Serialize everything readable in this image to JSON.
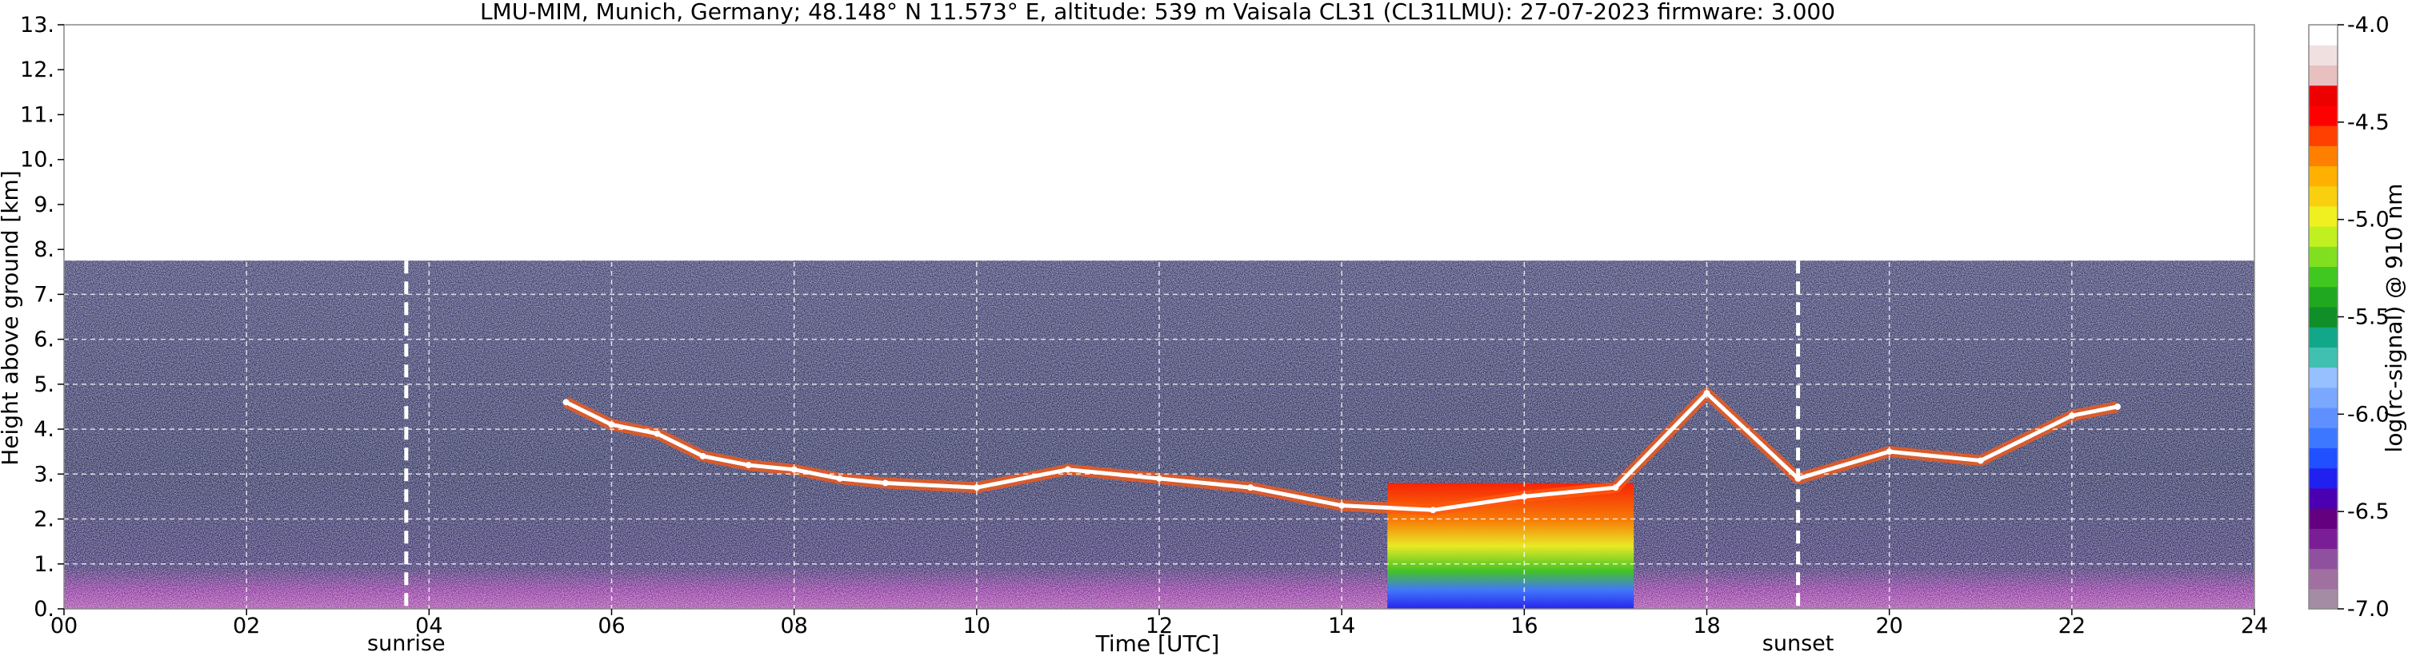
{
  "chart_data": {
    "type": "heatmap",
    "title": "LMU-MIM, Munich, Germany; 48.148° N 11.573° E, altitude: 539 m    Vaisala CL31 (CL31LMU): 27-07-2023    firmware: 3.000",
    "xlabel": "Time [UTC]",
    "ylabel": "Height above ground [km]",
    "xlim": [
      0,
      24
    ],
    "ylim": [
      0,
      13
    ],
    "x_ticks": [
      "00",
      "02",
      "04",
      "06",
      "08",
      "10",
      "12",
      "14",
      "16",
      "18",
      "20",
      "22",
      "24"
    ],
    "y_ticks": [
      "0.",
      "1.",
      "2.",
      "3.",
      "4.",
      "5.",
      "6.",
      "7.",
      "8.",
      "9.",
      "10.",
      "11.",
      "12.",
      "13."
    ],
    "grid": true,
    "data_top_km": 7.75,
    "markers": [
      {
        "label": "sunrise",
        "time_h": 3.75
      },
      {
        "label": "sunset",
        "time_h": 19.0
      }
    ],
    "colorbar": {
      "label": "log(rc-signal) @ 910 nm",
      "range": [
        -7.0,
        -4.0
      ],
      "ticks": [
        "-4.0",
        "-4.5",
        "-5.0",
        "-5.5",
        "-6.0",
        "-6.5",
        "-7.0"
      ],
      "colors": [
        "#a48ca4",
        "#a070a0",
        "#9050a0",
        "#7a1e96",
        "#64007f",
        "#4a00b0",
        "#2020f0",
        "#2050ff",
        "#3c78ff",
        "#6090ff",
        "#7aa8ff",
        "#96c0ff",
        "#40c0b0",
        "#10a888",
        "#108f28",
        "#20a820",
        "#40c820",
        "#80e020",
        "#c0f020",
        "#f0f020",
        "#f8d010",
        "#ffb000",
        "#ff8000",
        "#ff4000",
        "#ff0000",
        "#ec0000",
        "#e8c0c0",
        "#f0e0e0",
        "#ffffff"
      ]
    },
    "cloud_layers": [
      {
        "t": 5.5,
        "h": 4.6
      },
      {
        "t": 6.0,
        "h": 4.1
      },
      {
        "t": 6.5,
        "h": 3.9
      },
      {
        "t": 7.0,
        "h": 3.4
      },
      {
        "t": 7.5,
        "h": 3.2
      },
      {
        "t": 8.0,
        "h": 3.1
      },
      {
        "t": 8.5,
        "h": 2.9
      },
      {
        "t": 9.0,
        "h": 2.8
      },
      {
        "t": 10.0,
        "h": 2.7
      },
      {
        "t": 11.0,
        "h": 3.1
      },
      {
        "t": 12.0,
        "h": 2.9
      },
      {
        "t": 13.0,
        "h": 2.7
      },
      {
        "t": 14.0,
        "h": 2.3
      },
      {
        "t": 15.0,
        "h": 2.2
      },
      {
        "t": 16.0,
        "h": 2.5
      },
      {
        "t": 17.0,
        "h": 2.7
      },
      {
        "t": 18.0,
        "h": 4.8
      },
      {
        "t": 19.0,
        "h": 2.9
      },
      {
        "t": 20.0,
        "h": 3.5
      },
      {
        "t": 21.0,
        "h": 3.3
      },
      {
        "t": 22.0,
        "h": 4.3
      },
      {
        "t": 22.5,
        "h": 4.5
      }
    ],
    "precipitation_periods": [
      {
        "start": 14.5,
        "end": 17.2,
        "top_km": 2.8
      }
    ]
  }
}
